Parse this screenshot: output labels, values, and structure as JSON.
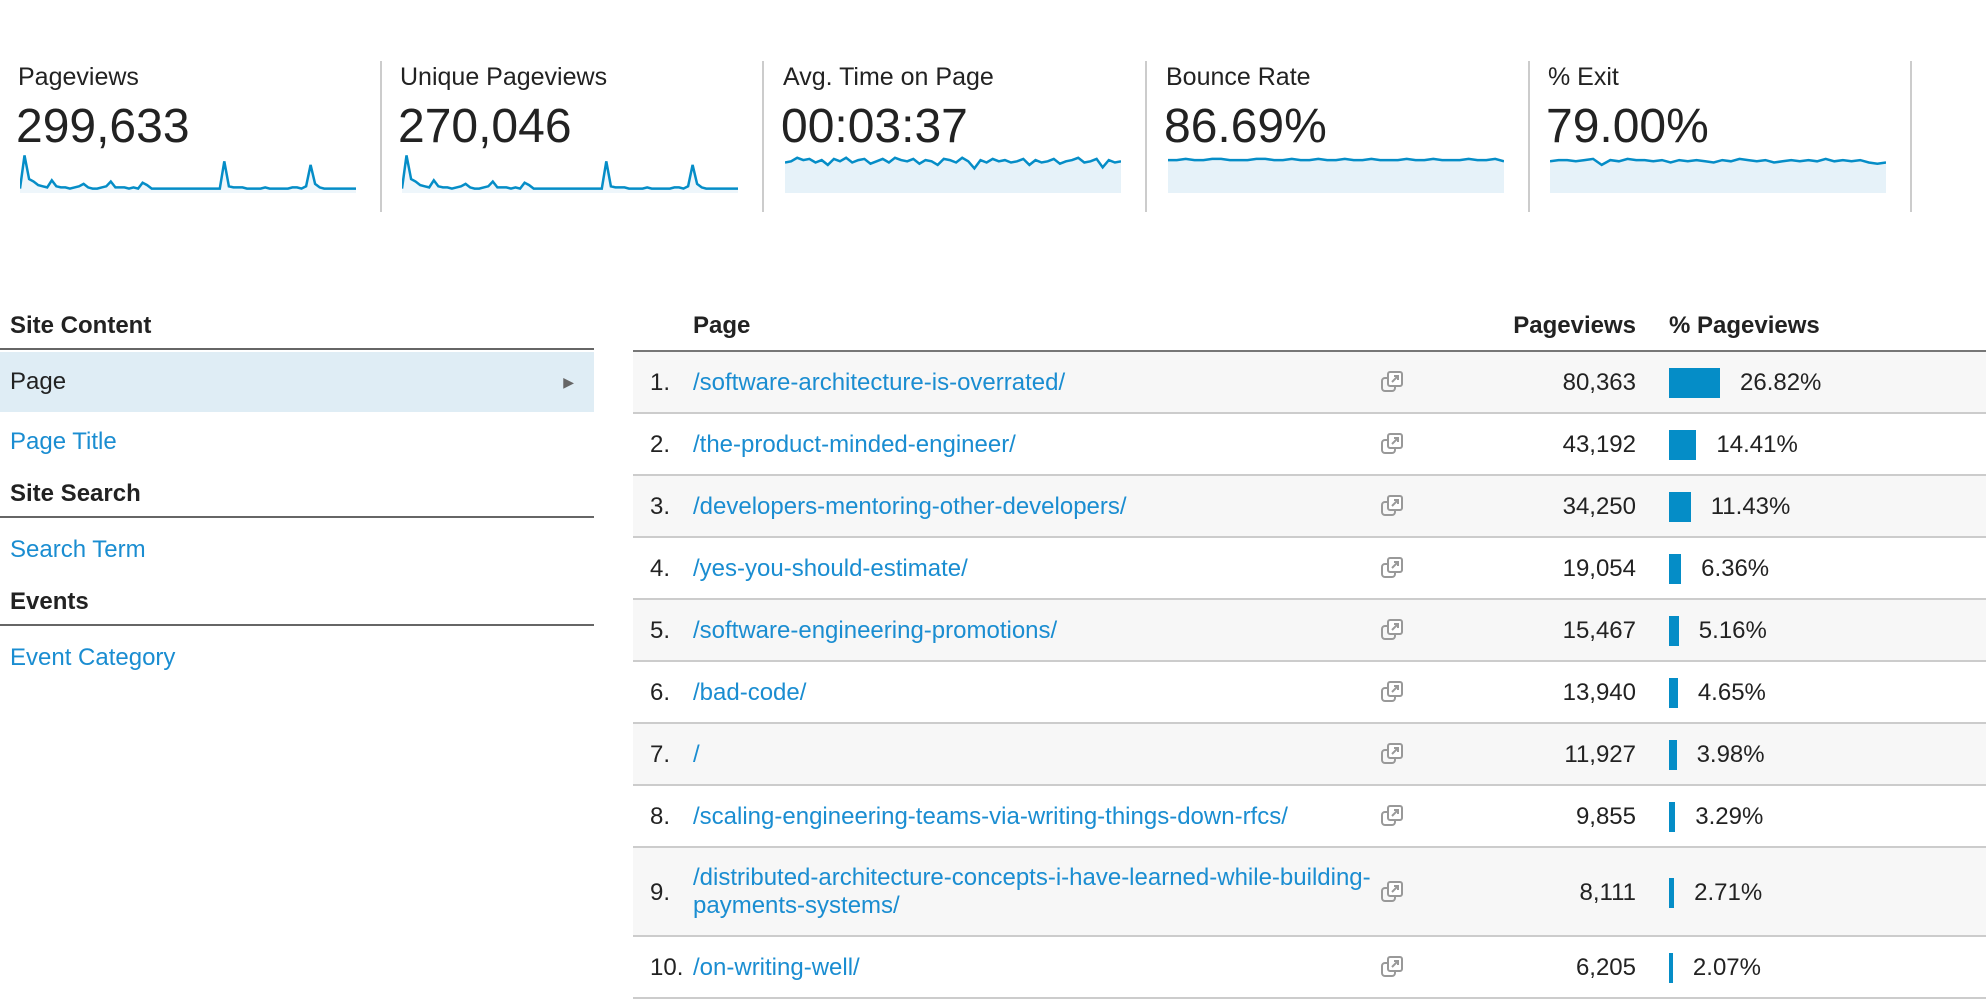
{
  "metrics": [
    {
      "label": "Pageviews",
      "value": "299,633",
      "fill": false,
      "spark": [
        2,
        30,
        10,
        8,
        5,
        4,
        3,
        9,
        4,
        3,
        3,
        2,
        3,
        4,
        6,
        3,
        2,
        2,
        3,
        4,
        8,
        3,
        3,
        3,
        2,
        3,
        2,
        7,
        5,
        2,
        2,
        2,
        2,
        2,
        2,
        2,
        2,
        2,
        2,
        2,
        2,
        2,
        2,
        2,
        2,
        25,
        4,
        3,
        3,
        3,
        2,
        2,
        2,
        2,
        3,
        2,
        2,
        2,
        2,
        2,
        3,
        3,
        2,
        4,
        22,
        6,
        3,
        2,
        2,
        2,
        2,
        2,
        2,
        2,
        2
      ]
    },
    {
      "label": "Unique Pageviews",
      "value": "270,046",
      "fill": false,
      "spark": [
        2,
        30,
        10,
        8,
        5,
        4,
        3,
        9,
        4,
        3,
        3,
        2,
        3,
        4,
        6,
        3,
        2,
        2,
        3,
        4,
        8,
        3,
        3,
        3,
        2,
        3,
        2,
        7,
        5,
        2,
        2,
        2,
        2,
        2,
        2,
        2,
        2,
        2,
        2,
        2,
        2,
        2,
        2,
        2,
        2,
        25,
        4,
        3,
        3,
        3,
        2,
        2,
        2,
        2,
        3,
        2,
        2,
        2,
        2,
        2,
        3,
        3,
        2,
        4,
        22,
        6,
        3,
        2,
        2,
        2,
        2,
        2,
        2,
        2,
        2
      ]
    },
    {
      "label": "Avg. Time on Page",
      "value": "00:03:37",
      "fill": true,
      "spark": [
        24,
        25,
        28,
        26,
        27,
        24,
        26,
        22,
        27,
        25,
        28,
        24,
        26,
        27,
        23,
        25,
        27,
        24,
        28,
        26,
        25,
        27,
        23,
        26,
        25,
        22,
        27,
        26,
        24,
        28,
        25,
        19,
        26,
        24,
        27,
        25,
        26,
        24,
        25,
        27,
        22,
        26,
        24,
        25,
        27,
        23,
        25,
        26,
        28,
        24,
        25,
        27,
        20,
        26,
        24,
        25
      ]
    },
    {
      "label": "Bounce Rate",
      "value": "86.69%",
      "fill": true,
      "spark": [
        26,
        26,
        27,
        26,
        26,
        27,
        27,
        26,
        26,
        26,
        27,
        27,
        26,
        26,
        27,
        26,
        26,
        27,
        26,
        26,
        27,
        26,
        26,
        27,
        26,
        26,
        26,
        27,
        26,
        26,
        27,
        26,
        26,
        26,
        27,
        26,
        26,
        27,
        25
      ]
    },
    {
      "label": "% Exit",
      "value": "79.00%",
      "fill": true,
      "spark": [
        25,
        26,
        26,
        25,
        26,
        27,
        22,
        26,
        25,
        27,
        26,
        26,
        25,
        26,
        24,
        26,
        25,
        26,
        25,
        24,
        26,
        25,
        27,
        26,
        25,
        26,
        24,
        25,
        26,
        25,
        26,
        25,
        27,
        25,
        26,
        25,
        26,
        24,
        23,
        24
      ]
    }
  ],
  "sidebar": {
    "sections": [
      {
        "title": "Site Content",
        "items": [
          {
            "label": "Page",
            "selected": true
          },
          {
            "label": "Page Title"
          }
        ]
      },
      {
        "title": "Site Search",
        "items": [
          {
            "label": "Search Term"
          }
        ]
      },
      {
        "title": "Events",
        "items": [
          {
            "label": "Event Category"
          }
        ]
      }
    ]
  },
  "table": {
    "headers": {
      "page": "Page",
      "pageviews": "Pageviews",
      "pct": "% Pageviews"
    },
    "rows": [
      {
        "idx": "1.",
        "page": "/software-architecture-is-overrated/",
        "pageviews": "80,363",
        "pct": "26.82%",
        "share": 26.82
      },
      {
        "idx": "2.",
        "page": "/the-product-minded-engineer/",
        "pageviews": "43,192",
        "pct": "14.41%",
        "share": 14.41
      },
      {
        "idx": "3.",
        "page": "/developers-mentoring-other-developers/",
        "pageviews": "34,250",
        "pct": "11.43%",
        "share": 11.43
      },
      {
        "idx": "4.",
        "page": "/yes-you-should-estimate/",
        "pageviews": "19,054",
        "pct": "6.36%",
        "share": 6.36
      },
      {
        "idx": "5.",
        "page": "/software-engineering-promotions/",
        "pageviews": "15,467",
        "pct": "5.16%",
        "share": 5.16
      },
      {
        "idx": "6.",
        "page": "/bad-code/",
        "pageviews": "13,940",
        "pct": "4.65%",
        "share": 4.65
      },
      {
        "idx": "7.",
        "page": "/",
        "pageviews": "11,927",
        "pct": "3.98%",
        "share": 3.98
      },
      {
        "idx": "8.",
        "page": "/scaling-engineering-teams-via-writing-things-down-rfcs/",
        "pageviews": "9,855",
        "pct": "3.29%",
        "share": 3.29
      },
      {
        "idx": "9.",
        "page": "/distributed-architecture-concepts-i-have-learned-while-building-payments-systems/",
        "pageviews": "8,111",
        "pct": "2.71%",
        "share": 2.71
      },
      {
        "idx": "10.",
        "page": "/on-writing-well/",
        "pageviews": "6,205",
        "pct": "2.07%",
        "share": 2.07
      }
    ]
  },
  "colors": {
    "accent": "#058dc7",
    "link": "#1a8dd1",
    "selected": "#dfedf5"
  }
}
